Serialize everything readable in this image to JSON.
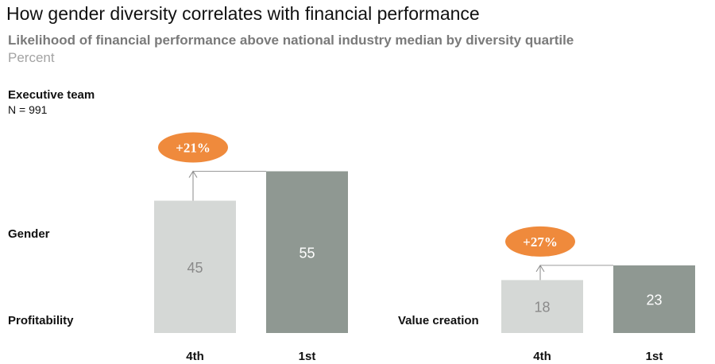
{
  "title": "How gender diversity correlates with financial performance",
  "subtitle": "Likelihood of financial performance above national industry median by diversity quartile",
  "unit": "Percent",
  "panel": {
    "title": "Executive team",
    "n": "N = 991"
  },
  "row_label": "Gender",
  "colors": {
    "light_bar": "#d5d8d6",
    "dark_bar": "#8f9892",
    "badge": "#ef8a3c",
    "arrow": "#8a8a8a"
  },
  "chart_data": [
    {
      "type": "bar",
      "title": "Profitability",
      "categories": [
        "4th",
        "1st"
      ],
      "values": [
        45,
        55
      ],
      "annotation": "+21%",
      "ylim": [
        0,
        55
      ],
      "grid": false
    },
    {
      "type": "bar",
      "title": "Value creation",
      "categories": [
        "4th",
        "1st"
      ],
      "values": [
        18,
        23
      ],
      "annotation": "+27%",
      "ylim": [
        0,
        55
      ],
      "grid": false
    }
  ]
}
